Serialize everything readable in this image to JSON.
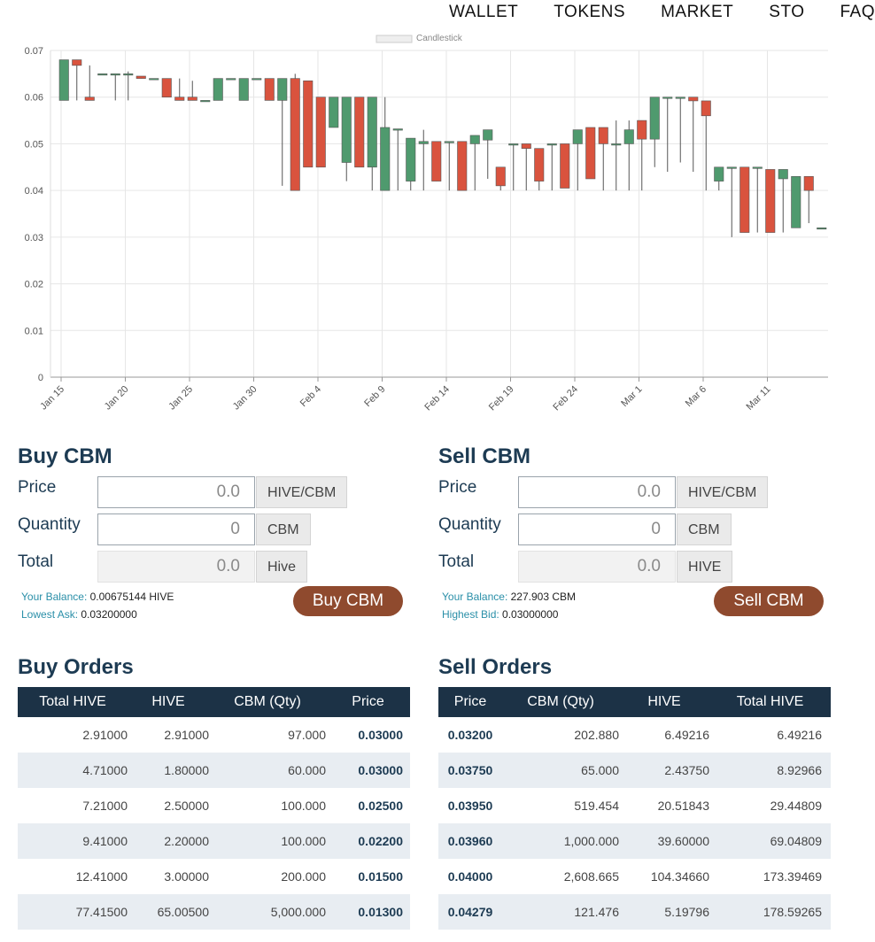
{
  "nav": [
    "WALLET",
    "TOKENS",
    "MARKET",
    "STO",
    "FAQ"
  ],
  "chart_data": {
    "type": "candlestick",
    "legend": "Candlestick",
    "ylim": [
      0,
      0.07
    ],
    "yticks": [
      "0",
      "0.01",
      "0.02",
      "0.03",
      "0.04",
      "0.05",
      "0.06",
      "0.07"
    ],
    "xticks": [
      "Jan 15",
      "Jan 20",
      "Jan 25",
      "Jan 30",
      "Feb 4",
      "Feb 9",
      "Feb 14",
      "Feb 19",
      "Feb 24",
      "Mar 1",
      "Mar 6",
      "Mar 11"
    ],
    "up_color": "#4f9a6e",
    "down_color": "#d9533e",
    "candles": [
      {
        "x": 0,
        "o": 0.0593,
        "c": 0.068,
        "h": 0.068,
        "l": 0.0593
      },
      {
        "x": 1,
        "o": 0.068,
        "c": 0.0668,
        "h": 0.068,
        "l": 0.0593
      },
      {
        "x": 2,
        "o": 0.06,
        "c": 0.0593,
        "h": 0.0668,
        "l": 0.0593
      },
      {
        "x": 3,
        "o": 0.065,
        "c": 0.065,
        "h": 0.065,
        "l": 0.065
      },
      {
        "x": 4,
        "o": 0.065,
        "c": 0.065,
        "h": 0.065,
        "l": 0.0593
      },
      {
        "x": 5,
        "o": 0.065,
        "c": 0.065,
        "h": 0.0655,
        "l": 0.0593
      },
      {
        "x": 6,
        "o": 0.0645,
        "c": 0.064,
        "h": 0.0645,
        "l": 0.064
      },
      {
        "x": 7,
        "o": 0.064,
        "c": 0.064,
        "h": 0.064,
        "l": 0.064
      },
      {
        "x": 8,
        "o": 0.064,
        "c": 0.06,
        "h": 0.064,
        "l": 0.06
      },
      {
        "x": 9,
        "o": 0.06,
        "c": 0.0593,
        "h": 0.064,
        "l": 0.0593
      },
      {
        "x": 10,
        "o": 0.06,
        "c": 0.0593,
        "h": 0.0635,
        "l": 0.0593
      },
      {
        "x": 11,
        "o": 0.0593,
        "c": 0.0593,
        "h": 0.0593,
        "l": 0.0593
      },
      {
        "x": 12,
        "o": 0.0593,
        "c": 0.064,
        "h": 0.064,
        "l": 0.0593
      },
      {
        "x": 13,
        "o": 0.064,
        "c": 0.064,
        "h": 0.064,
        "l": 0.064
      },
      {
        "x": 14,
        "o": 0.0593,
        "c": 0.064,
        "h": 0.064,
        "l": 0.0593
      },
      {
        "x": 15,
        "o": 0.064,
        "c": 0.064,
        "h": 0.064,
        "l": 0.064
      },
      {
        "x": 16,
        "o": 0.064,
        "c": 0.0593,
        "h": 0.064,
        "l": 0.0593
      },
      {
        "x": 17,
        "o": 0.0593,
        "c": 0.064,
        "h": 0.064,
        "l": 0.041
      },
      {
        "x": 18,
        "o": 0.064,
        "c": 0.04,
        "h": 0.065,
        "l": 0.04
      },
      {
        "x": 19,
        "o": 0.0635,
        "c": 0.045,
        "h": 0.0635,
        "l": 0.045
      },
      {
        "x": 20,
        "o": 0.06,
        "c": 0.045,
        "h": 0.06,
        "l": 0.045
      },
      {
        "x": 21,
        "o": 0.0535,
        "c": 0.06,
        "h": 0.06,
        "l": 0.0535
      },
      {
        "x": 22,
        "o": 0.046,
        "c": 0.06,
        "h": 0.06,
        "l": 0.042
      },
      {
        "x": 23,
        "o": 0.06,
        "c": 0.045,
        "h": 0.06,
        "l": 0.045
      },
      {
        "x": 24,
        "o": 0.045,
        "c": 0.06,
        "h": 0.06,
        "l": 0.04
      },
      {
        "x": 25,
        "o": 0.04,
        "c": 0.0535,
        "h": 0.06,
        "l": 0.04
      },
      {
        "x": 26,
        "o": 0.0532,
        "c": 0.0532,
        "h": 0.0532,
        "l": 0.04
      },
      {
        "x": 27,
        "o": 0.042,
        "c": 0.0512,
        "h": 0.0512,
        "l": 0.04
      },
      {
        "x": 28,
        "o": 0.05,
        "c": 0.0505,
        "h": 0.053,
        "l": 0.04
      },
      {
        "x": 29,
        "o": 0.0505,
        "c": 0.042,
        "h": 0.0505,
        "l": 0.042
      },
      {
        "x": 30,
        "o": 0.0505,
        "c": 0.0505,
        "h": 0.0505,
        "l": 0.04
      },
      {
        "x": 31,
        "o": 0.0505,
        "c": 0.04,
        "h": 0.0505,
        "l": 0.04
      },
      {
        "x": 32,
        "o": 0.05,
        "c": 0.0518,
        "h": 0.0518,
        "l": 0.04
      },
      {
        "x": 33,
        "o": 0.0508,
        "c": 0.053,
        "h": 0.053,
        "l": 0.0425
      },
      {
        "x": 34,
        "o": 0.045,
        "c": 0.041,
        "h": 0.045,
        "l": 0.04
      },
      {
        "x": 35,
        "o": 0.05,
        "c": 0.05,
        "h": 0.05,
        "l": 0.04
      },
      {
        "x": 36,
        "o": 0.05,
        "c": 0.049,
        "h": 0.05,
        "l": 0.04
      },
      {
        "x": 37,
        "o": 0.049,
        "c": 0.042,
        "h": 0.049,
        "l": 0.04
      },
      {
        "x": 38,
        "o": 0.05,
        "c": 0.05,
        "h": 0.05,
        "l": 0.04
      },
      {
        "x": 39,
        "o": 0.05,
        "c": 0.0405,
        "h": 0.05,
        "l": 0.0405
      },
      {
        "x": 40,
        "o": 0.05,
        "c": 0.053,
        "h": 0.053,
        "l": 0.04
      },
      {
        "x": 41,
        "o": 0.0535,
        "c": 0.0425,
        "h": 0.0535,
        "l": 0.0425
      },
      {
        "x": 42,
        "o": 0.0535,
        "c": 0.05,
        "h": 0.0535,
        "l": 0.04
      },
      {
        "x": 43,
        "o": 0.05,
        "c": 0.05,
        "h": 0.055,
        "l": 0.04
      },
      {
        "x": 44,
        "o": 0.05,
        "c": 0.053,
        "h": 0.055,
        "l": 0.04
      },
      {
        "x": 45,
        "o": 0.055,
        "c": 0.051,
        "h": 0.055,
        "l": 0.04
      },
      {
        "x": 46,
        "o": 0.051,
        "c": 0.06,
        "h": 0.06,
        "l": 0.045
      },
      {
        "x": 47,
        "o": 0.06,
        "c": 0.06,
        "h": 0.06,
        "l": 0.044
      },
      {
        "x": 48,
        "o": 0.06,
        "c": 0.06,
        "h": 0.06,
        "l": 0.046
      },
      {
        "x": 49,
        "o": 0.06,
        "c": 0.0592,
        "h": 0.06,
        "l": 0.044
      },
      {
        "x": 50,
        "o": 0.0592,
        "c": 0.056,
        "h": 0.0592,
        "l": 0.04
      },
      {
        "x": 51,
        "o": 0.042,
        "c": 0.045,
        "h": 0.045,
        "l": 0.04
      },
      {
        "x": 52,
        "o": 0.045,
        "c": 0.045,
        "h": 0.045,
        "l": 0.03
      },
      {
        "x": 53,
        "o": 0.045,
        "c": 0.031,
        "h": 0.045,
        "l": 0.031
      },
      {
        "x": 54,
        "o": 0.045,
        "c": 0.045,
        "h": 0.045,
        "l": 0.031
      },
      {
        "x": 55,
        "o": 0.0445,
        "c": 0.031,
        "h": 0.0445,
        "l": 0.031
      },
      {
        "x": 56,
        "o": 0.0425,
        "c": 0.0445,
        "h": 0.0445,
        "l": 0.031
      },
      {
        "x": 57,
        "o": 0.032,
        "c": 0.043,
        "h": 0.043,
        "l": 0.032
      },
      {
        "x": 58,
        "o": 0.043,
        "c": 0.04,
        "h": 0.043,
        "l": 0.033
      },
      {
        "x": 59,
        "o": 0.032,
        "c": 0.032,
        "h": 0.032,
        "l": 0.032
      }
    ]
  },
  "buy": {
    "title": "Buy CBM",
    "price_label": "Price",
    "price_value": "0.0",
    "price_unit": "HIVE/CBM",
    "qty_label": "Quantity",
    "qty_value": "0",
    "qty_unit": "CBM",
    "total_label": "Total",
    "total_value": "0.0",
    "total_unit": "Hive",
    "balance_label": "Your Balance:",
    "balance_value": "0.00675144 HIVE",
    "ask_label": "Lowest Ask:",
    "ask_value": "0.03200000",
    "button": "Buy CBM"
  },
  "sell": {
    "title": "Sell CBM",
    "price_label": "Price",
    "price_value": "0.0",
    "price_unit": "HIVE/CBM",
    "qty_label": "Quantity",
    "qty_value": "0",
    "qty_unit": "CBM",
    "total_label": "Total",
    "total_value": "0.0",
    "total_unit": "HIVE",
    "balance_label": "Your Balance:",
    "balance_value": "227.903 CBM",
    "bid_label": "Highest Bid:",
    "bid_value": "0.03000000",
    "button": "Sell CBM"
  },
  "buy_orders": {
    "title": "Buy Orders",
    "headers": [
      "Total HIVE",
      "HIVE",
      "CBM (Qty)",
      "Price"
    ],
    "rows": [
      [
        "2.91000",
        "2.91000",
        "97.000",
        "0.03000"
      ],
      [
        "4.71000",
        "1.80000",
        "60.000",
        "0.03000"
      ],
      [
        "7.21000",
        "2.50000",
        "100.000",
        "0.02500"
      ],
      [
        "9.41000",
        "2.20000",
        "100.000",
        "0.02200"
      ],
      [
        "12.41000",
        "3.00000",
        "200.000",
        "0.01500"
      ],
      [
        "77.41500",
        "65.00500",
        "5,000.000",
        "0.01300"
      ]
    ]
  },
  "sell_orders": {
    "title": "Sell Orders",
    "headers": [
      "Price",
      "CBM (Qty)",
      "HIVE",
      "Total HIVE"
    ],
    "rows": [
      [
        "0.03200",
        "202.880",
        "6.49216",
        "6.49216"
      ],
      [
        "0.03750",
        "65.000",
        "2.43750",
        "8.92966"
      ],
      [
        "0.03950",
        "519.454",
        "20.51843",
        "29.44809"
      ],
      [
        "0.03960",
        "1,000.000",
        "39.60000",
        "69.04809"
      ],
      [
        "0.04000",
        "2,608.665",
        "104.34660",
        "173.39469"
      ],
      [
        "0.04279",
        "121.476",
        "5.19796",
        "178.59265"
      ]
    ]
  }
}
